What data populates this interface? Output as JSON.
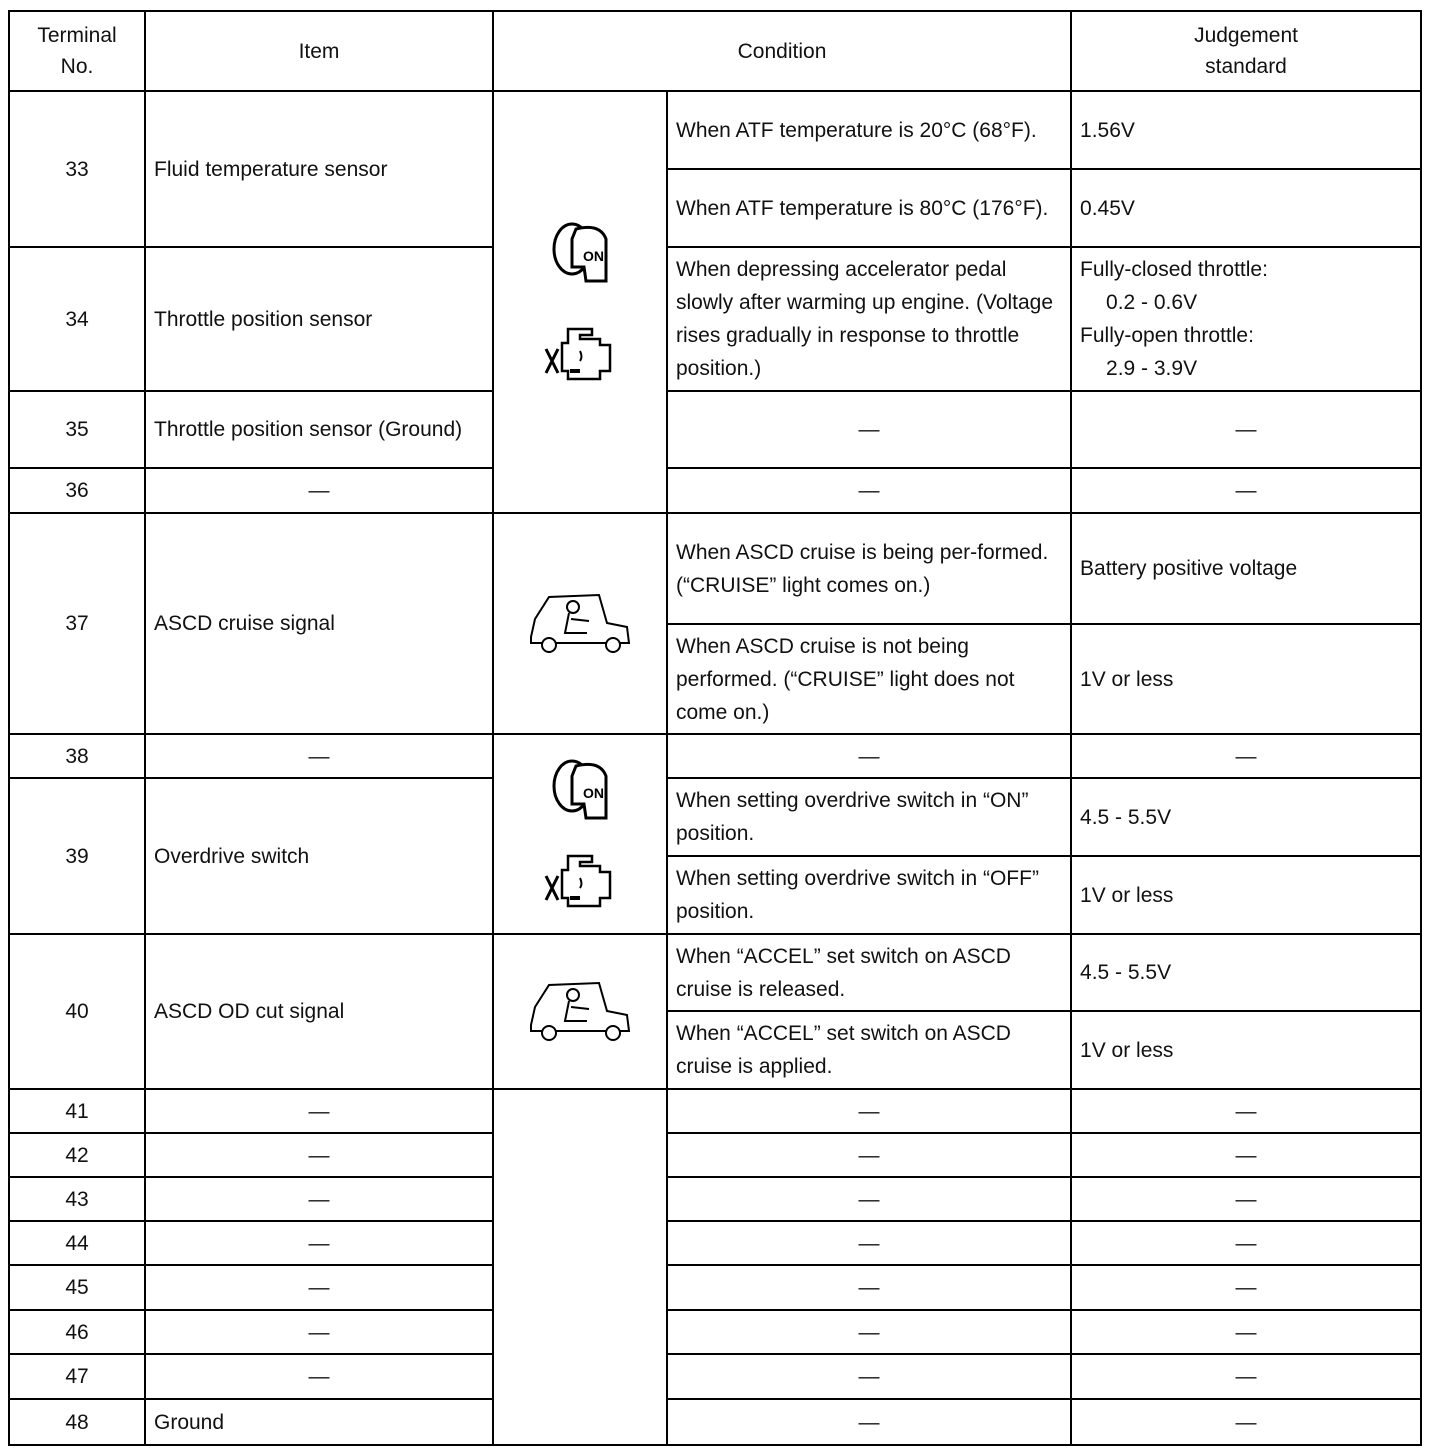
{
  "header": {
    "terminal": "Terminal No.",
    "item": "Item",
    "condition": "Condition",
    "judgement": "Judgement standard"
  },
  "icons": {
    "ignition_on": "ignition-key-on-icon",
    "engine": "engine-running-icon",
    "car": "car-driving-icon",
    "key_label": "ON"
  },
  "rows": {
    "r33": {
      "no": "33",
      "item": "Fluid temperature sensor",
      "c1": "When ATF temperature is 20°C (68°F).",
      "j1": "1.56V",
      "c2": "When ATF temperature is 80°C (176°F).",
      "j2": "0.45V"
    },
    "r34": {
      "no": "34",
      "item": "Throttle position sensor",
      "c": "When depressing accelerator pedal slowly after warming up engine. (Voltage rises gradually in response to throttle position.)",
      "j1": "Fully-closed throttle:",
      "j2": "0.2 - 0.6V",
      "j3": "Fully-open throttle:",
      "j4": "2.9 - 3.9V"
    },
    "r35": {
      "no": "35",
      "item": "Throttle position sensor (Ground)",
      "c": "—",
      "j": "—"
    },
    "r36": {
      "no": "36",
      "item": "—",
      "c": "—",
      "j": "—"
    },
    "r37": {
      "no": "37",
      "item": "ASCD cruise signal",
      "c1": "When ASCD cruise is being per-formed. (“CRUISE” light comes on.)",
      "j1": "Battery positive voltage",
      "c2": "When ASCD cruise is not being performed. (“CRUISE” light does not come on.)",
      "j2": "1V or less"
    },
    "r38": {
      "no": "38",
      "item": "—",
      "c": "—",
      "j": "—"
    },
    "r39": {
      "no": "39",
      "item": "Overdrive switch",
      "c1": "When setting overdrive switch in “ON” position.",
      "j1": "4.5 - 5.5V",
      "c2": "When setting overdrive switch in “OFF” position.",
      "j2": "1V or less"
    },
    "r40": {
      "no": "40",
      "item": "ASCD OD cut signal",
      "c1": "When “ACCEL” set switch on ASCD cruise is released.",
      "j1": "4.5 - 5.5V",
      "c2": "When “ACCEL” set switch on ASCD cruise is applied.",
      "j2": "1V or less"
    },
    "empty": [
      {
        "no": "41",
        "item": "—",
        "c": "—",
        "j": "—"
      },
      {
        "no": "42",
        "item": "—",
        "c": "—",
        "j": "—"
      },
      {
        "no": "43",
        "item": "—",
        "c": "—",
        "j": "—"
      },
      {
        "no": "44",
        "item": "—",
        "c": "—",
        "j": "—"
      },
      {
        "no": "45",
        "item": "—",
        "c": "—",
        "j": "—"
      },
      {
        "no": "46",
        "item": "—",
        "c": "—",
        "j": "—"
      },
      {
        "no": "47",
        "item": "—",
        "c": "—",
        "j": "—"
      },
      {
        "no": "48",
        "item": "Ground",
        "c": "—",
        "j": "—"
      }
    ]
  }
}
